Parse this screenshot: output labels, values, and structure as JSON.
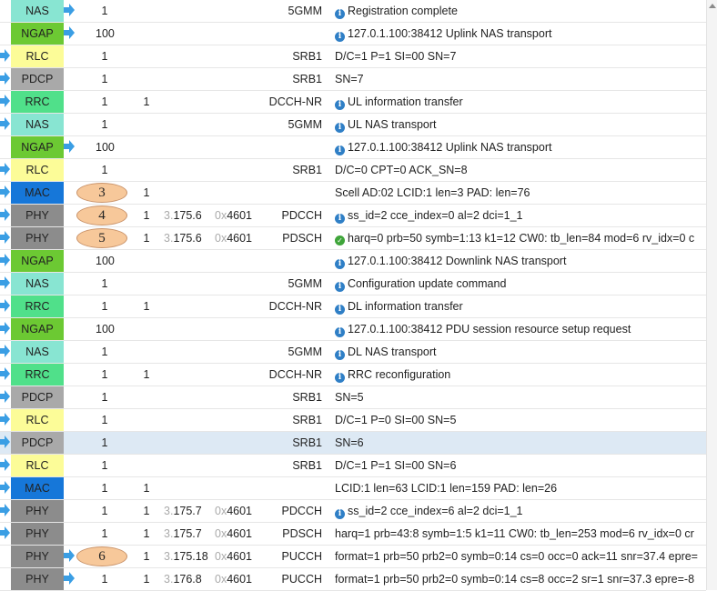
{
  "colors": {
    "NAS": "#88e5d2",
    "NGAP": "#6cc933",
    "RLC": "#fcfc98",
    "PDCP": "#a9a9a9",
    "RRC": "#50e08a",
    "MAC": "#1677d9",
    "PHY": "#8c8c8c",
    "arrow": "#3a9ee4"
  },
  "rows": [
    {
      "dir": "r",
      "layer": "NAS",
      "ue": "1",
      "cell": "",
      "sfn_a": "",
      "sfn_b": "",
      "rnti_a": "",
      "rnti_b": "",
      "chan": "5GMM",
      "icon": "info-icon",
      "msg": "Registration complete"
    },
    {
      "dir": "r",
      "layer": "NGAP",
      "ue": "100",
      "cell": "",
      "sfn_a": "",
      "sfn_b": "",
      "rnti_a": "",
      "rnti_b": "",
      "chan": "",
      "icon": "info-icon",
      "msg": "127.0.1.100:38412 Uplink NAS transport"
    },
    {
      "dir": "l",
      "layer": "RLC",
      "ue": "1",
      "cell": "",
      "sfn_a": "",
      "sfn_b": "",
      "rnti_a": "",
      "rnti_b": "",
      "chan": "SRB1",
      "icon": "",
      "msg": "D/C=1 P=1 SI=00 SN=7"
    },
    {
      "dir": "l",
      "layer": "PDCP",
      "ue": "1",
      "cell": "",
      "sfn_a": "",
      "sfn_b": "",
      "rnti_a": "",
      "rnti_b": "",
      "chan": "SRB1",
      "icon": "",
      "msg": "SN=7"
    },
    {
      "dir": "l",
      "layer": "RRC",
      "ue": "1",
      "cell": "1",
      "sfn_a": "",
      "sfn_b": "",
      "rnti_a": "",
      "rnti_b": "",
      "chan": "DCCH-NR",
      "icon": "info-icon",
      "msg": "UL information transfer"
    },
    {
      "dir": "l",
      "layer": "NAS",
      "ue": "1",
      "cell": "",
      "sfn_a": "",
      "sfn_b": "",
      "rnti_a": "",
      "rnti_b": "",
      "chan": "5GMM",
      "icon": "info-icon",
      "msg": "UL NAS transport"
    },
    {
      "dir": "r",
      "layer": "NGAP",
      "ue": "100",
      "cell": "",
      "sfn_a": "",
      "sfn_b": "",
      "rnti_a": "",
      "rnti_b": "",
      "chan": "",
      "icon": "info-icon",
      "msg": "127.0.1.100:38412 Uplink NAS transport"
    },
    {
      "dir": "l",
      "layer": "RLC",
      "ue": "1",
      "cell": "",
      "sfn_a": "",
      "sfn_b": "",
      "rnti_a": "",
      "rnti_b": "",
      "chan": "SRB1",
      "icon": "",
      "msg": "D/C=0 CPT=0 ACK_SN=8"
    },
    {
      "dir": "l",
      "layer": "MAC",
      "ue": "",
      "cell": "1",
      "sfn_a": "",
      "sfn_b": "",
      "rnti_a": "",
      "rnti_b": "",
      "chan": "",
      "icon": "",
      "msg": "Scell AD:02 LCID:1 len=3 PAD: len=76",
      "badge": "3"
    },
    {
      "dir": "l",
      "layer": "PHY",
      "ue": "",
      "cell": "1",
      "sfn_a": "3.",
      "sfn_b": "175.6",
      "rnti_a": "0x",
      "rnti_b": "4601",
      "chan": "PDCCH",
      "icon": "info-icon",
      "msg": "ss_id=2 cce_index=0 al=2 dci=1_1",
      "badge": "4"
    },
    {
      "dir": "l",
      "layer": "PHY",
      "ue": "",
      "cell": "1",
      "sfn_a": "3.",
      "sfn_b": "175.6",
      "rnti_a": "0x",
      "rnti_b": "4601",
      "chan": "PDSCH",
      "icon": "ok-icon",
      "msg": "harq=0 prb=50 symb=1:13 k1=12 CW0: tb_len=84 mod=6 rv_idx=0 c",
      "badge": "5"
    },
    {
      "dir": "l",
      "layer": "NGAP",
      "ue": "100",
      "cell": "",
      "sfn_a": "",
      "sfn_b": "",
      "rnti_a": "",
      "rnti_b": "",
      "chan": "",
      "icon": "info-icon",
      "msg": "127.0.1.100:38412 Downlink NAS transport"
    },
    {
      "dir": "l",
      "layer": "NAS",
      "ue": "1",
      "cell": "",
      "sfn_a": "",
      "sfn_b": "",
      "rnti_a": "",
      "rnti_b": "",
      "chan": "5GMM",
      "icon": "info-icon",
      "msg": "Configuration update command"
    },
    {
      "dir": "l",
      "layer": "RRC",
      "ue": "1",
      "cell": "1",
      "sfn_a": "",
      "sfn_b": "",
      "rnti_a": "",
      "rnti_b": "",
      "chan": "DCCH-NR",
      "icon": "info-icon",
      "msg": "DL information transfer"
    },
    {
      "dir": "l",
      "layer": "NGAP",
      "ue": "100",
      "cell": "",
      "sfn_a": "",
      "sfn_b": "",
      "rnti_a": "",
      "rnti_b": "",
      "chan": "",
      "icon": "info-icon",
      "msg": "127.0.1.100:38412 PDU session resource setup request"
    },
    {
      "dir": "l",
      "layer": "NAS",
      "ue": "1",
      "cell": "",
      "sfn_a": "",
      "sfn_b": "",
      "rnti_a": "",
      "rnti_b": "",
      "chan": "5GMM",
      "icon": "info-icon",
      "msg": "DL NAS transport"
    },
    {
      "dir": "l",
      "layer": "RRC",
      "ue": "1",
      "cell": "1",
      "sfn_a": "",
      "sfn_b": "",
      "rnti_a": "",
      "rnti_b": "",
      "chan": "DCCH-NR",
      "icon": "info-icon",
      "msg": "RRC reconfiguration"
    },
    {
      "dir": "l",
      "layer": "PDCP",
      "ue": "1",
      "cell": "",
      "sfn_a": "",
      "sfn_b": "",
      "rnti_a": "",
      "rnti_b": "",
      "chan": "SRB1",
      "icon": "",
      "msg": "SN=5"
    },
    {
      "dir": "l",
      "layer": "RLC",
      "ue": "1",
      "cell": "",
      "sfn_a": "",
      "sfn_b": "",
      "rnti_a": "",
      "rnti_b": "",
      "chan": "SRB1",
      "icon": "",
      "msg": "D/C=1 P=0 SI=00 SN=5"
    },
    {
      "dir": "l",
      "layer": "PDCP",
      "ue": "1",
      "cell": "",
      "sfn_a": "",
      "sfn_b": "",
      "rnti_a": "",
      "rnti_b": "",
      "chan": "SRB1",
      "icon": "",
      "msg": "SN=6",
      "selected": true
    },
    {
      "dir": "l",
      "layer": "RLC",
      "ue": "1",
      "cell": "",
      "sfn_a": "",
      "sfn_b": "",
      "rnti_a": "",
      "rnti_b": "",
      "chan": "SRB1",
      "icon": "",
      "msg": "D/C=1 P=1 SI=00 SN=6"
    },
    {
      "dir": "l",
      "layer": "MAC",
      "ue": "1",
      "cell": "1",
      "sfn_a": "",
      "sfn_b": "",
      "rnti_a": "",
      "rnti_b": "",
      "chan": "",
      "icon": "",
      "msg": "LCID:1 len=63 LCID:1 len=159 PAD: len=26"
    },
    {
      "dir": "l",
      "layer": "PHY",
      "ue": "1",
      "cell": "1",
      "sfn_a": "3.",
      "sfn_b": "175.7",
      "rnti_a": "0x",
      "rnti_b": "4601",
      "chan": "PDCCH",
      "icon": "info-icon",
      "msg": "ss_id=2 cce_index=6 al=2 dci=1_1"
    },
    {
      "dir": "l",
      "layer": "PHY",
      "ue": "1",
      "cell": "1",
      "sfn_a": "3.",
      "sfn_b": "175.7",
      "rnti_a": "0x",
      "rnti_b": "4601",
      "chan": "PDSCH",
      "icon": "",
      "msg": "harq=1 prb=43:8 symb=1:5 k1=11 CW0: tb_len=253 mod=6 rv_idx=0 cr"
    },
    {
      "dir": "r",
      "layer": "PHY",
      "ue": "",
      "cell": "1",
      "sfn_a": "3.",
      "sfn_b": "175.18",
      "rnti_a": "0x",
      "rnti_b": "4601",
      "chan": "PUCCH",
      "icon": "",
      "msg": "format=1 prb=50 prb2=0 symb=0:14 cs=0 occ=0 ack=11 snr=37.4 epre=",
      "badge": "6"
    },
    {
      "dir": "r",
      "layer": "PHY",
      "ue": "1",
      "cell": "1",
      "sfn_a": "3.",
      "sfn_b": "176.8",
      "rnti_a": "0x",
      "rnti_b": "4601",
      "chan": "PUCCH",
      "icon": "",
      "msg": "format=1 prb=50 prb2=0 symb=0:14 cs=8 occ=2 sr=1 snr=37.3 epre=-8"
    }
  ]
}
